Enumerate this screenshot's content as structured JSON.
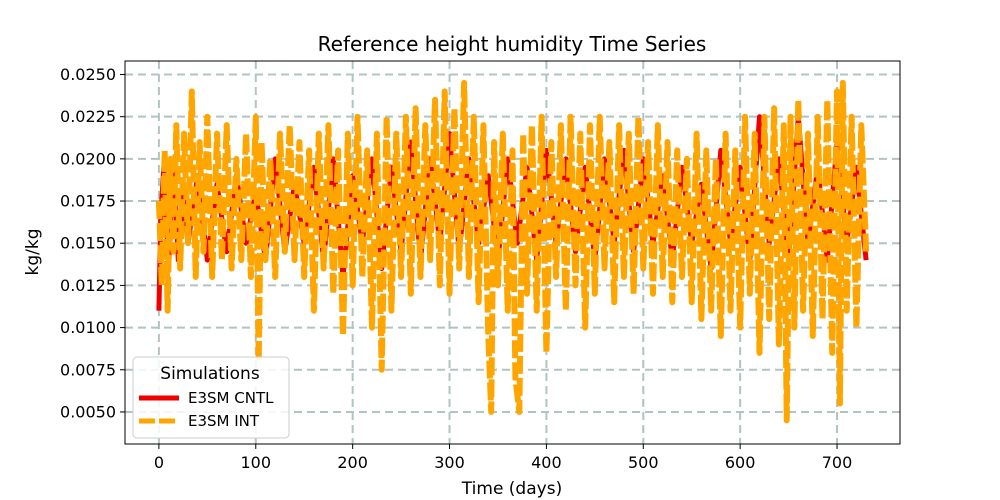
{
  "chart_data": {
    "type": "line",
    "title": "Reference height humidity Time Series",
    "xlabel": "Time (days)",
    "ylabel": "kg/kg",
    "xlim": [
      -35,
      765
    ],
    "ylim": [
      0.0031,
      0.0258
    ],
    "xticks": [
      0,
      100,
      200,
      300,
      400,
      500,
      600,
      700
    ],
    "yticks": [
      0.005,
      0.0075,
      0.01,
      0.0125,
      0.015,
      0.0175,
      0.02,
      0.0225,
      0.025
    ],
    "ytick_labels": [
      "0.0050",
      "0.0075",
      "0.0100",
      "0.0125",
      "0.0150",
      "0.0175",
      "0.0200",
      "0.0225",
      "0.0250"
    ],
    "grid": true,
    "legend": {
      "title": "Simulations",
      "placement": "lower-left"
    },
    "series": [
      {
        "name": "E3SM CNTL",
        "color": "#ee0000",
        "style": "solid",
        "x": [
          0,
          2,
          5,
          10,
          15,
          20,
          25,
          30,
          40,
          50,
          60,
          70,
          80,
          90,
          100,
          110,
          120,
          130,
          140,
          150,
          160,
          170,
          180,
          190,
          200,
          210,
          220,
          230,
          240,
          250,
          260,
          270,
          280,
          290,
          300,
          310,
          320,
          330,
          340,
          350,
          360,
          370,
          380,
          390,
          400,
          410,
          420,
          430,
          440,
          450,
          460,
          470,
          480,
          490,
          500,
          510,
          520,
          530,
          540,
          550,
          560,
          570,
          580,
          590,
          600,
          610,
          620,
          630,
          640,
          650,
          660,
          670,
          680,
          690,
          700,
          710,
          720,
          730
        ],
        "values": [
          0.011,
          0.0165,
          0.0195,
          0.0135,
          0.02,
          0.014,
          0.018,
          0.015,
          0.019,
          0.014,
          0.0185,
          0.0145,
          0.019,
          0.015,
          0.018,
          0.014,
          0.02,
          0.0145,
          0.0185,
          0.015,
          0.0195,
          0.014,
          0.02,
          0.013,
          0.019,
          0.015,
          0.02,
          0.0135,
          0.0195,
          0.0145,
          0.021,
          0.014,
          0.02,
          0.015,
          0.0215,
          0.0145,
          0.02,
          0.015,
          0.019,
          0.014,
          0.02,
          0.015,
          0.0195,
          0.014,
          0.0205,
          0.015,
          0.02,
          0.0145,
          0.0195,
          0.014,
          0.02,
          0.015,
          0.0205,
          0.0145,
          0.02,
          0.015,
          0.019,
          0.014,
          0.0195,
          0.015,
          0.0185,
          0.0135,
          0.0205,
          0.015,
          0.0195,
          0.014,
          0.0225,
          0.015,
          0.02,
          0.014,
          0.0225,
          0.015,
          0.0195,
          0.014,
          0.021,
          0.015,
          0.0195,
          0.014
        ]
      },
      {
        "name": "E3SM INT",
        "color": "#ffa500",
        "style": "dashed",
        "x": [
          0,
          3,
          6,
          9,
          12,
          15,
          18,
          22,
          26,
          30,
          34,
          38,
          42,
          46,
          50,
          55,
          60,
          65,
          70,
          75,
          80,
          85,
          90,
          95,
          100,
          103,
          106,
          110,
          115,
          120,
          125,
          130,
          135,
          140,
          145,
          150,
          155,
          160,
          165,
          170,
          175,
          180,
          185,
          190,
          195,
          200,
          205,
          210,
          215,
          220,
          225,
          230,
          235,
          240,
          245,
          250,
          255,
          260,
          265,
          270,
          275,
          280,
          285,
          290,
          295,
          300,
          305,
          310,
          315,
          320,
          325,
          330,
          335,
          340,
          343,
          346,
          350,
          355,
          360,
          365,
          368,
          372,
          376,
          380,
          385,
          390,
          395,
          400,
          405,
          410,
          415,
          420,
          425,
          430,
          435,
          440,
          445,
          450,
          455,
          460,
          465,
          470,
          475,
          480,
          485,
          490,
          495,
          500,
          505,
          510,
          515,
          520,
          525,
          530,
          535,
          540,
          545,
          550,
          555,
          560,
          565,
          570,
          575,
          580,
          585,
          590,
          595,
          600,
          605,
          610,
          615,
          620,
          625,
          630,
          635,
          640,
          645,
          648,
          652,
          656,
          660,
          665,
          670,
          675,
          680,
          685,
          690,
          695,
          700,
          703,
          706,
          710,
          715,
          720,
          725,
          730
        ],
        "values": [
          0.0175,
          0.0125,
          0.0205,
          0.011,
          0.02,
          0.0145,
          0.022,
          0.0135,
          0.0215,
          0.015,
          0.024,
          0.013,
          0.021,
          0.0145,
          0.0225,
          0.013,
          0.0215,
          0.014,
          0.022,
          0.0135,
          0.02,
          0.014,
          0.0215,
          0.013,
          0.0225,
          0.008,
          0.021,
          0.014,
          0.02,
          0.013,
          0.0215,
          0.0145,
          0.022,
          0.014,
          0.021,
          0.013,
          0.0205,
          0.011,
          0.0215,
          0.0135,
          0.022,
          0.012,
          0.0205,
          0.0095,
          0.0215,
          0.0125,
          0.0225,
          0.013,
          0.0205,
          0.01,
          0.0215,
          0.0075,
          0.0225,
          0.011,
          0.0215,
          0.013,
          0.0225,
          0.012,
          0.023,
          0.013,
          0.022,
          0.014,
          0.0235,
          0.0125,
          0.024,
          0.012,
          0.023,
          0.0135,
          0.0245,
          0.013,
          0.0225,
          0.0115,
          0.022,
          0.0095,
          0.005,
          0.021,
          0.0125,
          0.0215,
          0.011,
          0.0205,
          0.007,
          0.005,
          0.0215,
          0.012,
          0.022,
          0.011,
          0.0225,
          0.0085,
          0.021,
          0.013,
          0.022,
          0.011,
          0.0225,
          0.0125,
          0.0215,
          0.01,
          0.022,
          0.012,
          0.0225,
          0.0135,
          0.021,
          0.0115,
          0.022,
          0.013,
          0.0215,
          0.012,
          0.0225,
          0.0135,
          0.021,
          0.012,
          0.022,
          0.013,
          0.021,
          0.0115,
          0.0205,
          0.013,
          0.02,
          0.0115,
          0.0215,
          0.0105,
          0.0205,
          0.011,
          0.02,
          0.0095,
          0.0215,
          0.011,
          0.0205,
          0.01,
          0.0225,
          0.012,
          0.0215,
          0.0085,
          0.0225,
          0.0105,
          0.023,
          0.009,
          0.022,
          0.0045,
          0.0225,
          0.01,
          0.0235,
          0.011,
          0.0215,
          0.0095,
          0.0225,
          0.0105,
          0.0235,
          0.0085,
          0.024,
          0.0055,
          0.0245,
          0.011,
          0.0225,
          0.01,
          0.022,
          0.0145
        ]
      }
    ]
  }
}
